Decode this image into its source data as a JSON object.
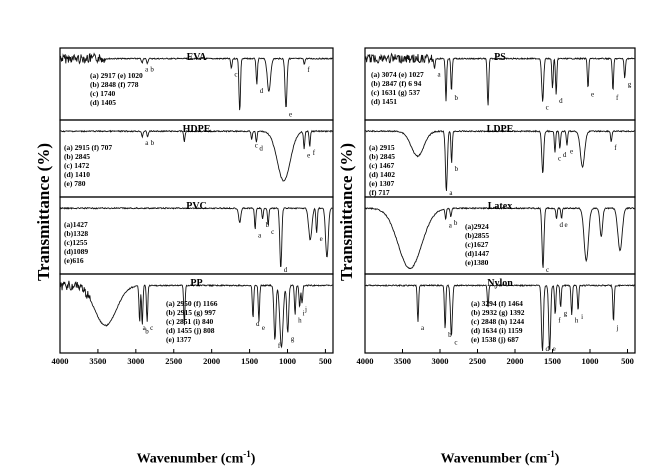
{
  "figure": {
    "ylabel": "Transmittance (%)",
    "xlabel": "Wavenumber (cm",
    "xlabel_sup": "-1",
    "xlabel_close": ")"
  },
  "chart_data": [
    {
      "type": "line",
      "title": "EVA",
      "xlim": [
        4000,
        400
      ],
      "xticks": [],
      "peak_labels": [
        "a",
        "b",
        "c",
        "d",
        "e",
        "f"
      ],
      "legend_lines": [
        "(a) 2917  (e) 1020",
        "(b) 2848  (f) 778",
        "(c) 1740",
        "(d) 1405"
      ],
      "peaks": [
        {
          "label": "a",
          "x": 2917,
          "depth": 0.07
        },
        {
          "label": "b",
          "x": 2848,
          "depth": 0.07
        },
        {
          "label": "c",
          "x": 1740,
          "depth": 0.15
        },
        {
          "label": "d",
          "x": 1405,
          "depth": 0.4
        },
        {
          "label": "e",
          "x": 1020,
          "depth": 0.75
        },
        {
          "label": "f",
          "x": 778,
          "depth": 0.08
        }
      ],
      "extra_bands": [
        {
          "x": 1630,
          "depth": 0.8,
          "w": 14
        },
        {
          "x": 1245,
          "depth": 0.5,
          "w": 30
        }
      ],
      "noise_region": [
        4000,
        3400
      ],
      "baseline": 0.12
    },
    {
      "type": "line",
      "title": "PS",
      "xlim": [
        4000,
        400
      ],
      "xticks": [],
      "peak_labels": [
        "a",
        "b",
        "c",
        "d",
        "e",
        "f",
        "g"
      ],
      "legend_lines": [
        "(a) 3074  (e) 1027",
        "(b) 2847  (f) 6 94",
        "(c) 1631  (g) 537",
        "(d) 1451"
      ],
      "peaks": [
        {
          "label": "a",
          "x": 3074,
          "depth": 0.15
        },
        {
          "label": "b",
          "x": 2847,
          "depth": 0.5
        },
        {
          "label": "c",
          "x": 1631,
          "depth": 0.65
        },
        {
          "label": "d",
          "x": 1451,
          "depth": 0.55
        },
        {
          "label": "e",
          "x": 1027,
          "depth": 0.45
        },
        {
          "label": "f",
          "x": 694,
          "depth": 0.5
        },
        {
          "label": "g",
          "x": 537,
          "depth": 0.3
        }
      ],
      "extra_bands": [
        {
          "x": 2920,
          "depth": 0.65,
          "w": 12
        },
        {
          "x": 2360,
          "depth": 0.7,
          "w": 14
        },
        {
          "x": 1500,
          "depth": 0.45,
          "w": 12
        }
      ],
      "noise_region": [
        4000,
        3100
      ],
      "baseline": 0.12
    },
    {
      "type": "line",
      "title": "HDPE",
      "xlim": [
        4000,
        400
      ],
      "xticks": [],
      "peak_labels": [
        "a",
        "b",
        "c",
        "d",
        "e",
        "f"
      ],
      "legend_lines": [
        "(a) 2915  (f) 707",
        "(b) 2845",
        "(c) 1472",
        "(d) 1410",
        "(e) 780"
      ],
      "peaks": [
        {
          "label": "a",
          "x": 2915,
          "depth": 0.08
        },
        {
          "label": "b",
          "x": 2845,
          "depth": 0.08
        },
        {
          "label": "c",
          "x": 1472,
          "depth": 0.12
        },
        {
          "label": "d",
          "x": 1410,
          "depth": 0.16
        },
        {
          "label": "e",
          "x": 780,
          "depth": 0.25
        },
        {
          "label": "f",
          "x": 707,
          "depth": 0.22
        }
      ],
      "extra_bands": [
        {
          "x": 1050,
          "depth": 0.7,
          "w": 120
        },
        {
          "x": 2360,
          "depth": 0.15,
          "w": 12
        }
      ],
      "noise_region": [],
      "baseline": 0.12
    },
    {
      "type": "line",
      "title": "LDPE",
      "xlim": [
        4000,
        400
      ],
      "xticks": [],
      "peak_labels": [
        "a",
        "b",
        "c",
        "d",
        "e",
        "f"
      ],
      "legend_lines": [
        "(a) 2915",
        "(b) 2845",
        "(c) 1467",
        "(d) 1402",
        "(e) 1307",
        "(f) 717"
      ],
      "peaks": [
        {
          "label": "a",
          "x": 2915,
          "depth": 0.85
        },
        {
          "label": "b",
          "x": 2845,
          "depth": 0.45
        },
        {
          "label": "c",
          "x": 1467,
          "depth": 0.3
        },
        {
          "label": "d",
          "x": 1402,
          "depth": 0.25
        },
        {
          "label": "e",
          "x": 1307,
          "depth": 0.2
        },
        {
          "label": "f",
          "x": 717,
          "depth": 0.15
        }
      ],
      "extra_bands": [
        {
          "x": 3300,
          "depth": 0.35,
          "w": 120
        },
        {
          "x": 1630,
          "depth": 0.6,
          "w": 18
        },
        {
          "x": 1100,
          "depth": 0.5,
          "w": 40
        }
      ],
      "noise_region": [],
      "baseline": 0.12
    },
    {
      "type": "line",
      "title": "PVC",
      "xlim": [
        4000,
        400
      ],
      "xticks": [],
      "peak_labels": [
        "a",
        "b",
        "c",
        "d",
        "e"
      ],
      "legend_lines": [
        "(a)1427",
        "(b)1328",
        "(c)1255",
        "(d)1089",
        "(e)616"
      ],
      "peaks": [
        {
          "label": "a",
          "x": 1427,
          "depth": 0.3
        },
        {
          "label": "b",
          "x": 1328,
          "depth": 0.15
        },
        {
          "label": "c",
          "x": 1255,
          "depth": 0.25
        },
        {
          "label": "d",
          "x": 1089,
          "depth": 0.85
        },
        {
          "label": "e",
          "x": 616,
          "depth": 0.35
        }
      ],
      "extra_bands": [
        {
          "x": 1630,
          "depth": 0.2,
          "w": 20
        },
        {
          "x": 700,
          "depth": 0.45,
          "w": 30
        },
        {
          "x": 480,
          "depth": 0.7,
          "w": 25
        }
      ],
      "noise_region": [],
      "baseline": 0.12
    },
    {
      "type": "line",
      "title": "Latex",
      "xlim": [
        4000,
        400
      ],
      "xticks": [],
      "peak_labels": [
        "a",
        "b",
        "c",
        "d",
        "e"
      ],
      "legend_lines": [
        "(a)2924",
        "(b)2855",
        "(c)1627",
        "(d)1447",
        "(e)1380"
      ],
      "peaks": [
        {
          "label": "a",
          "x": 2924,
          "depth": 0.15
        },
        {
          "label": "b",
          "x": 2855,
          "depth": 0.12
        },
        {
          "label": "c",
          "x": 1627,
          "depth": 0.85
        },
        {
          "label": "d",
          "x": 1447,
          "depth": 0.15
        },
        {
          "label": "e",
          "x": 1380,
          "depth": 0.15
        }
      ],
      "extra_bands": [
        {
          "x": 3400,
          "depth": 0.85,
          "w": 220
        },
        {
          "x": 1050,
          "depth": 0.75,
          "w": 40
        },
        {
          "x": 850,
          "depth": 0.4,
          "w": 25
        },
        {
          "x": 600,
          "depth": 0.6,
          "w": 40
        }
      ],
      "noise_region": [],
      "baseline": 0.12
    },
    {
      "type": "line",
      "title": "PP",
      "xlim": [
        4000,
        400
      ],
      "xticks": [
        4000,
        3500,
        3000,
        2500,
        2000,
        1500,
        1000,
        500
      ],
      "peak_labels": [
        "a",
        "b",
        "c",
        "d",
        "e",
        "f",
        "g",
        "h",
        "i",
        "j"
      ],
      "legend_lines": [
        "(a) 2950  (f) 1166",
        "(b) 2915  (g) 997",
        "(c) 2851  (i) 840",
        "(d) 1455  (j) 808",
        "(e) 1377"
      ],
      "peaks": [
        {
          "label": "a",
          "x": 2950,
          "depth": 0.5
        },
        {
          "label": "b",
          "x": 2915,
          "depth": 0.55
        },
        {
          "label": "c",
          "x": 2851,
          "depth": 0.5
        },
        {
          "label": "d",
          "x": 1455,
          "depth": 0.45
        },
        {
          "label": "e",
          "x": 1377,
          "depth": 0.5
        },
        {
          "label": "f",
          "x": 1166,
          "depth": 0.75
        },
        {
          "label": "g",
          "x": 997,
          "depth": 0.65
        },
        {
          "label": "h",
          "x": 900,
          "depth": 0.4
        },
        {
          "label": "i",
          "x": 840,
          "depth": 0.3
        },
        {
          "label": "j",
          "x": 808,
          "depth": 0.25
        }
      ],
      "extra_bands": [
        {
          "x": 3400,
          "depth": 0.55,
          "w": 200
        },
        {
          "x": 2360,
          "depth": 0.55,
          "w": 12
        },
        {
          "x": 1080,
          "depth": 0.85,
          "w": 30
        }
      ],
      "noise_region": [
        4000,
        3600
      ],
      "baseline": 0.12
    },
    {
      "type": "line",
      "title": "Nylon",
      "xlim": [
        4000,
        400
      ],
      "xticks": [
        4000,
        3500,
        3000,
        2500,
        2000,
        1500,
        1000,
        500
      ],
      "peak_labels": [
        "a",
        "b",
        "c",
        "d",
        "e",
        "f",
        "g",
        "h",
        "i",
        "j"
      ],
      "legend_lines": [
        "(a) 3294  (f) 1464",
        "(b) 2932  (g) 1392",
        "(c) 2848  (h) 1244",
        "(d) 1634  (i) 1159",
        "(e) 1538  (j) 687"
      ],
      "peaks": [
        {
          "label": "a",
          "x": 3294,
          "depth": 0.5
        },
        {
          "label": "b",
          "x": 2932,
          "depth": 0.6
        },
        {
          "label": "c",
          "x": 2848,
          "depth": 0.7
        },
        {
          "label": "d",
          "x": 1634,
          "depth": 0.92
        },
        {
          "label": "e",
          "x": 1538,
          "depth": 0.9
        },
        {
          "label": "f",
          "x": 1464,
          "depth": 0.4
        },
        {
          "label": "g",
          "x": 1392,
          "depth": 0.3
        },
        {
          "label": "h",
          "x": 1244,
          "depth": 0.4
        },
        {
          "label": "i",
          "x": 1159,
          "depth": 0.35
        },
        {
          "label": "j",
          "x": 687,
          "depth": 0.5
        }
      ],
      "extra_bands": [
        {
          "x": 2360,
          "depth": 0.3,
          "w": 12
        }
      ],
      "noise_region": [],
      "baseline": 0.12
    }
  ]
}
